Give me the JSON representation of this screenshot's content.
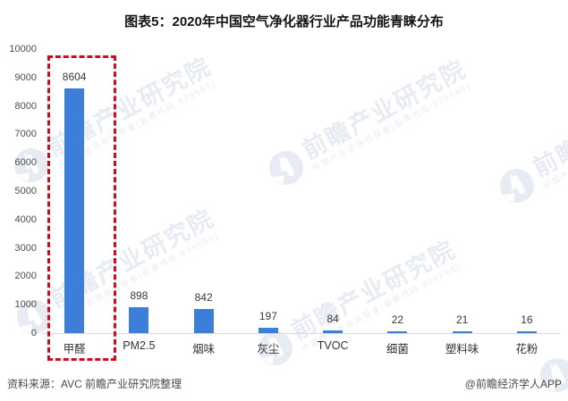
{
  "title": "图表5：2020年中国空气净化器行业产品功能青睐分布",
  "chart_data": {
    "type": "bar",
    "title": "图表5：2020年中国空气净化器行业产品功能青睐分布",
    "categories": [
      "甲醛",
      "PM2.5",
      "烟味",
      "灰尘",
      "TVOC",
      "细菌",
      "塑料味",
      "花粉"
    ],
    "values": [
      8604,
      898,
      842,
      197,
      84,
      22,
      21,
      16
    ],
    "xlabel": "",
    "ylabel": "",
    "ylim": [
      0,
      10000
    ],
    "ytick_step": 1000,
    "grid": false,
    "legend": false,
    "bar_color": "#3D7ED8",
    "highlight": {
      "category": "甲醛",
      "style": "dashed-box",
      "color": "#CE0A1E"
    }
  },
  "watermark": {
    "text": "前瞻产业研究院",
    "subtext": "中国产业咨询领导者(股票代码:839599)",
    "logo": "qianzhan-logo",
    "color": "#E7EBF3"
  },
  "footer": {
    "source": "资料来源：AVC 前瞻产业研究院整理",
    "credit": "@前瞻经济学人APP"
  }
}
